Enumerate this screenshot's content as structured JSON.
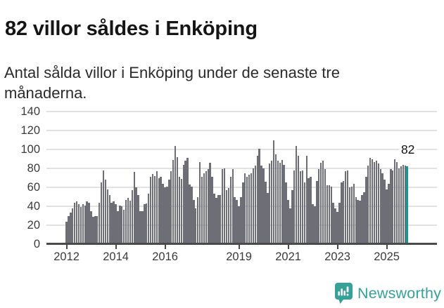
{
  "header": {
    "title": "82 villor såldes i Enköping",
    "subtitle": "Antal sålda villor i Enköping under de senaste tre månaderna."
  },
  "chart_data": {
    "type": "bar",
    "title": "82 villor såldes i Enköping",
    "xlabel": "",
    "ylabel": "",
    "x_start_month": "2012-01",
    "x_end_month": "2025-11",
    "ylim": [
      0,
      140
    ],
    "grid": true,
    "y_tick_labels": [
      "0",
      "20",
      "40",
      "60",
      "80",
      "100",
      "120",
      "140"
    ],
    "y_tick_values": [
      0,
      20,
      40,
      60,
      80,
      100,
      120,
      140
    ],
    "x_ticks": [
      {
        "label": "2012",
        "year": 2012
      },
      {
        "label": "2014",
        "year": 2014
      },
      {
        "label": "2016",
        "year": 2016
      },
      {
        "label": "2019",
        "year": 2019
      },
      {
        "label": "2021",
        "year": 2021
      },
      {
        "label": "2023",
        "year": 2023
      },
      {
        "label": "2025",
        "year": 2025
      }
    ],
    "values": [
      24,
      30,
      33,
      38,
      44,
      45,
      42,
      39,
      42,
      41,
      45,
      44,
      35,
      29,
      30,
      30,
      44,
      65,
      78,
      68,
      58,
      52,
      44,
      45,
      42,
      35,
      41,
      40,
      36,
      47,
      49,
      46,
      57,
      76,
      60,
      52,
      35,
      35,
      42,
      43,
      53,
      71,
      74,
      72,
      77,
      70,
      71,
      64,
      60,
      61,
      68,
      77,
      89,
      104,
      92,
      71,
      69,
      84,
      88,
      91,
      63,
      61,
      47,
      38,
      50,
      87,
      71,
      75,
      77,
      79,
      86,
      71,
      53,
      49,
      52,
      52,
      79,
      80,
      57,
      59,
      71,
      79,
      50,
      47,
      40,
      50,
      65,
      75,
      71,
      73,
      75,
      80,
      83,
      93,
      101,
      83,
      80,
      66,
      54,
      85,
      88,
      110,
      95,
      88,
      86,
      89,
      84,
      65,
      47,
      38,
      57,
      78,
      104,
      93,
      77,
      78,
      65,
      93,
      70,
      71,
      42,
      40,
      67,
      79,
      86,
      88,
      79,
      62,
      62,
      61,
      44,
      38,
      34,
      44,
      65,
      67,
      77,
      78,
      60,
      61,
      64,
      50,
      47,
      46,
      52,
      55,
      71,
      83,
      91,
      90,
      87,
      88,
      85,
      79,
      75,
      68,
      58,
      64,
      79,
      78,
      90,
      87,
      80,
      82,
      84,
      83,
      82
    ],
    "highlight": {
      "index": 166,
      "label": "82",
      "value": 82,
      "color": "#0e9b93"
    },
    "bar_color": "#6e6e76",
    "legend": "none"
  },
  "footer": {
    "brand": "Newsworthy",
    "brand_color": "#35a199",
    "logo_icon": "newsworthy-bar-chart-bubble-icon"
  }
}
